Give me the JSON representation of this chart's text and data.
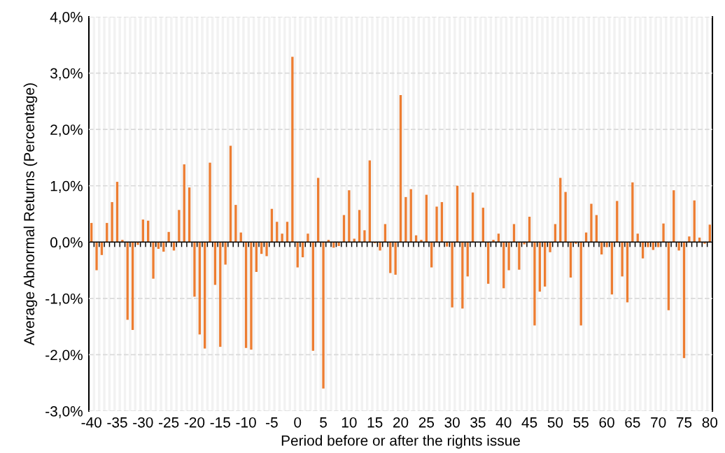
{
  "chart_data": {
    "type": "bar",
    "xlabel": "Period before or after the rights issue",
    "ylabel": "Average Abnormal Returns (Percentage)",
    "categories": [
      "-40",
      null,
      null,
      null,
      null,
      "-35",
      null,
      null,
      null,
      null,
      "-30",
      null,
      null,
      null,
      null,
      "-25",
      null,
      null,
      null,
      null,
      "-20",
      null,
      null,
      null,
      null,
      "-15",
      null,
      null,
      null,
      null,
      "-10",
      null,
      null,
      null,
      null,
      "-5",
      null,
      null,
      null,
      null,
      "0",
      null,
      null,
      null,
      null,
      "5",
      null,
      null,
      null,
      null,
      "10",
      null,
      null,
      null,
      null,
      "15",
      null,
      null,
      null,
      null,
      "20",
      null,
      null,
      null,
      null,
      "25",
      null,
      null,
      null,
      null,
      "30",
      null,
      null,
      null,
      null,
      "35",
      null,
      null,
      null,
      null,
      "40",
      null,
      null,
      null,
      null,
      "45",
      null,
      null,
      null,
      null,
      "50",
      null,
      null,
      null,
      null,
      "55",
      null,
      null,
      null,
      null,
      "60",
      null,
      null,
      null,
      null,
      "65",
      null,
      null,
      null,
      null,
      "70",
      null,
      null,
      null,
      null,
      "75",
      null,
      null,
      null,
      null,
      "80"
    ],
    "values": [
      0.34,
      -0.5,
      -0.23,
      0.34,
      0.71,
      1.07,
      0.04,
      -1.38,
      -1.56,
      -0.05,
      0.4,
      0.38,
      -0.65,
      -0.12,
      -0.17,
      0.18,
      -0.15,
      0.57,
      1.38,
      0.97,
      -0.97,
      -1.64,
      -1.89,
      1.41,
      -0.76,
      -1.86,
      -0.4,
      1.71,
      0.66,
      0.17,
      -1.88,
      -1.91,
      -0.53,
      -0.21,
      -0.25,
      0.59,
      0.36,
      0.15,
      0.36,
      3.29,
      -0.45,
      -0.27,
      0.15,
      -1.93,
      1.14,
      -2.6,
      0.04,
      -0.1,
      -0.07,
      0.48,
      0.92,
      0.06,
      0.57,
      0.21,
      1.45,
      -0.02,
      -0.15,
      0.32,
      -0.55,
      -0.58,
      2.61,
      0.8,
      0.94,
      0.12,
      0.04,
      0.84,
      -0.45,
      0.63,
      0.71,
      -0.08,
      -1.16,
      1.0,
      -1.18,
      -0.61,
      0.88,
      0.0,
      0.61,
      -0.74,
      0.04,
      0.15,
      -0.82,
      -0.5,
      0.32,
      -0.49,
      -0.04,
      0.45,
      -1.48,
      -0.88,
      -0.79,
      -0.18,
      0.32,
      1.14,
      0.89,
      -0.63,
      -0.03,
      -1.48,
      0.17,
      0.68,
      0.48,
      -0.22,
      -0.09,
      -0.93,
      0.73,
      -0.61,
      -1.07,
      1.06,
      0.15,
      -0.29,
      -0.09,
      -0.14,
      -0.09,
      0.33,
      -1.21,
      0.92,
      -0.15,
      -2.06,
      0.1,
      0.74,
      0.08,
      -0.03,
      0.31
    ],
    "color": "#ed7d31",
    "ylim": [
      -3,
      4
    ],
    "yticks": [
      {
        "value": -3,
        "label": "-3,0%"
      },
      {
        "value": -2,
        "label": "-2,0%"
      },
      {
        "value": -1,
        "label": "-1,0%"
      },
      {
        "value": 0,
        "label": "0,0%"
      },
      {
        "value": 1,
        "label": "1,0%"
      },
      {
        "value": 2,
        "label": "2,0%"
      },
      {
        "value": 3,
        "label": "3,0%"
      },
      {
        "value": 4,
        "label": "4,0%"
      }
    ],
    "grid": true
  }
}
